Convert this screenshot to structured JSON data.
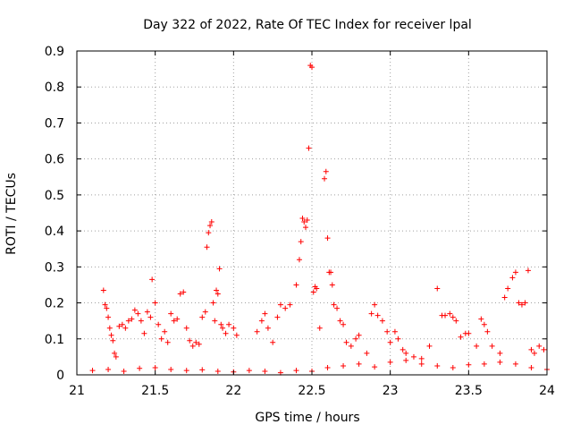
{
  "chart_data": {
    "type": "scatter",
    "title": "Day 322 of 2022, Rate Of TEC Index for receiver lpal",
    "xlabel": "GPS time / hours",
    "ylabel": "ROTI / TECUs",
    "xlim": [
      21,
      24
    ],
    "ylim": [
      0,
      0.9
    ],
    "grid": true,
    "marker": "+",
    "color": "#ff0000",
    "x_ticks": [
      "21",
      "21.5",
      "22",
      "22.5",
      "23",
      "23.5",
      "24"
    ],
    "x_tick_values": [
      21,
      21.5,
      22,
      22.5,
      23,
      23.5,
      24
    ],
    "y_ticks": [
      "0",
      "0.1",
      "0.2",
      "0.3",
      "0.4",
      "0.5",
      "0.6",
      "0.7",
      "0.8",
      "0.9"
    ],
    "y_tick_values": [
      0,
      0.1,
      0.2,
      0.3,
      0.4,
      0.5,
      0.6,
      0.7,
      0.8,
      0.9
    ],
    "x": [
      21.17,
      21.18,
      21.19,
      21.2,
      21.21,
      21.22,
      21.23,
      21.24,
      21.25,
      21.27,
      21.29,
      21.31,
      21.33,
      21.35,
      21.37,
      21.39,
      21.41,
      21.43,
      21.45,
      21.47,
      21.48,
      21.5,
      21.52,
      21.54,
      21.56,
      21.58,
      21.6,
      21.62,
      21.64,
      21.66,
      21.68,
      21.7,
      21.72,
      21.74,
      21.76,
      21.78,
      21.8,
      21.82,
      21.83,
      21.84,
      21.85,
      21.86,
      21.87,
      21.88,
      21.89,
      21.9,
      21.91,
      21.92,
      21.93,
      21.95,
      21.97,
      22.0,
      22.02,
      22.15,
      22.18,
      22.2,
      22.22,
      22.25,
      22.28,
      22.3,
      22.33,
      22.36,
      22.4,
      22.42,
      22.43,
      22.44,
      22.45,
      22.46,
      22.47,
      22.48,
      22.49,
      22.5,
      22.51,
      22.52,
      22.53,
      22.55,
      22.58,
      22.59,
      22.6,
      22.61,
      22.62,
      22.63,
      22.64,
      22.66,
      22.68,
      22.7,
      22.72,
      22.75,
      22.78,
      22.8,
      22.85,
      22.88,
      22.9,
      22.92,
      22.95,
      22.98,
      23.0,
      23.03,
      23.05,
      23.08,
      23.1,
      23.15,
      23.2,
      23.25,
      23.3,
      23.33,
      23.35,
      23.38,
      23.4,
      23.42,
      23.45,
      23.48,
      23.5,
      23.55,
      23.58,
      23.6,
      23.62,
      23.65,
      23.7,
      23.73,
      23.75,
      23.78,
      23.8,
      23.82,
      23.84,
      23.86,
      23.88,
      23.9,
      23.92,
      23.95,
      23.98,
      21.1,
      21.2,
      21.3,
      21.4,
      21.5,
      21.6,
      21.7,
      21.8,
      21.9,
      22.0,
      22.1,
      22.2,
      22.3,
      22.4,
      22.5,
      22.6,
      22.7,
      22.8,
      22.9,
      23.0,
      23.1,
      23.2,
      23.3,
      23.4,
      23.5,
      23.6,
      23.7,
      23.8,
      23.9,
      24.0
    ],
    "y": [
      0.235,
      0.195,
      0.185,
      0.16,
      0.13,
      0.11,
      0.095,
      0.06,
      0.05,
      0.135,
      0.14,
      0.13,
      0.15,
      0.155,
      0.18,
      0.17,
      0.15,
      0.115,
      0.175,
      0.16,
      0.265,
      0.2,
      0.14,
      0.1,
      0.12,
      0.09,
      0.17,
      0.15,
      0.155,
      0.225,
      0.23,
      0.13,
      0.095,
      0.08,
      0.09,
      0.085,
      0.16,
      0.175,
      0.355,
      0.395,
      0.415,
      0.425,
      0.2,
      0.15,
      0.235,
      0.225,
      0.295,
      0.14,
      0.13,
      0.115,
      0.14,
      0.13,
      0.11,
      0.12,
      0.15,
      0.17,
      0.13,
      0.09,
      0.16,
      0.195,
      0.185,
      0.195,
      0.25,
      0.32,
      0.37,
      0.435,
      0.425,
      0.41,
      0.43,
      0.63,
      0.86,
      0.855,
      0.23,
      0.245,
      0.24,
      0.13,
      0.545,
      0.565,
      0.38,
      0.285,
      0.285,
      0.25,
      0.195,
      0.185,
      0.15,
      0.14,
      0.09,
      0.08,
      0.1,
      0.11,
      0.06,
      0.17,
      0.195,
      0.165,
      0.15,
      0.12,
      0.09,
      0.12,
      0.1,
      0.07,
      0.06,
      0.05,
      0.045,
      0.08,
      0.24,
      0.165,
      0.165,
      0.17,
      0.16,
      0.15,
      0.105,
      0.115,
      0.115,
      0.08,
      0.155,
      0.14,
      0.12,
      0.08,
      0.06,
      0.215,
      0.24,
      0.27,
      0.285,
      0.2,
      0.195,
      0.2,
      0.29,
      0.07,
      0.06,
      0.08,
      0.07,
      0.012,
      0.015,
      0.01,
      0.018,
      0.02,
      0.015,
      0.012,
      0.014,
      0.01,
      0.008,
      0.012,
      0.01,
      0.006,
      0.012,
      0.01,
      0.02,
      0.025,
      0.03,
      0.022,
      0.035,
      0.04,
      0.03,
      0.025,
      0.02,
      0.028,
      0.03,
      0.035,
      0.03,
      0.02,
      0.015
    ]
  }
}
